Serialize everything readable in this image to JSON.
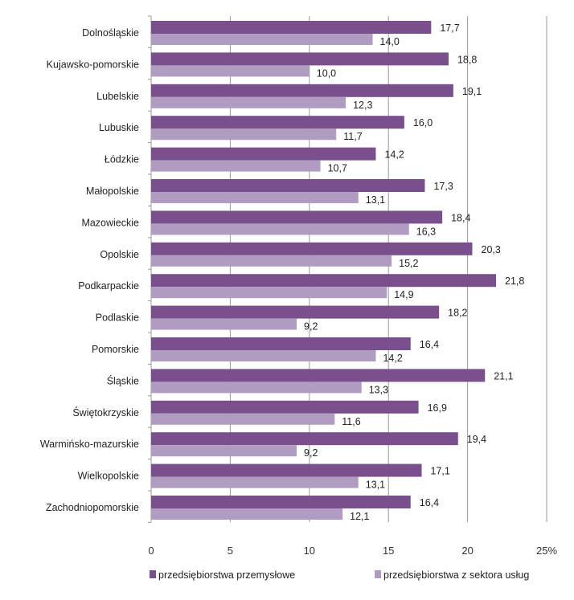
{
  "chart_data": {
    "type": "bar",
    "orientation": "horizontal",
    "categories": [
      "Dolnośląskie",
      "Kujawsko-pomorskie",
      "Lubelskie",
      "Lubuskie",
      "Łódzkie",
      "Małopolskie",
      "Mazowieckie",
      "Opolskie",
      "Podkarpackie",
      "Podlaskie",
      "Pomorskie",
      "Śląskie",
      "Świętokrzyskie",
      "Warmińsko-mazurskie",
      "Wielkopolskie",
      "Zachodniopomorskie"
    ],
    "series": [
      {
        "name": "przedsiębiorstwa przemysłowe",
        "color": "#7a4f8e",
        "values": [
          17.7,
          18.8,
          19.1,
          16.0,
          14.2,
          17.3,
          18.4,
          20.3,
          21.8,
          18.2,
          16.4,
          21.1,
          16.9,
          19.4,
          17.1,
          16.4
        ],
        "labels": [
          "17,7",
          "18,8",
          "19,1",
          "16,0",
          "14,2",
          "17,3",
          "18,4",
          "20,3",
          "21,8",
          "18,2",
          "16,4",
          "21,1",
          "16,9",
          "19,4",
          "17,1",
          "16,4"
        ]
      },
      {
        "name": "przedsiębiorstwa z sektora usług",
        "color": "#b09cc0",
        "values": [
          14.0,
          10.0,
          12.3,
          11.7,
          10.7,
          13.1,
          16.3,
          15.2,
          14.9,
          9.2,
          14.2,
          13.3,
          11.6,
          9.2,
          13.1,
          12.1
        ],
        "labels": [
          "14,0",
          "10,0",
          "12,3",
          "11,7",
          "10,7",
          "13,1",
          "16,3",
          "15,2",
          "14,9",
          "9,2",
          "14,2",
          "13,3",
          "11,6",
          "9,2",
          "13,1",
          "12,1"
        ]
      }
    ],
    "xlim": [
      0,
      25
    ],
    "xticks": [
      0,
      5,
      10,
      15,
      20,
      25
    ],
    "xtick_labels": [
      "0",
      "5",
      "10",
      "15",
      "20",
      "25%"
    ],
    "grid": "vertical",
    "legend": "bottom"
  }
}
